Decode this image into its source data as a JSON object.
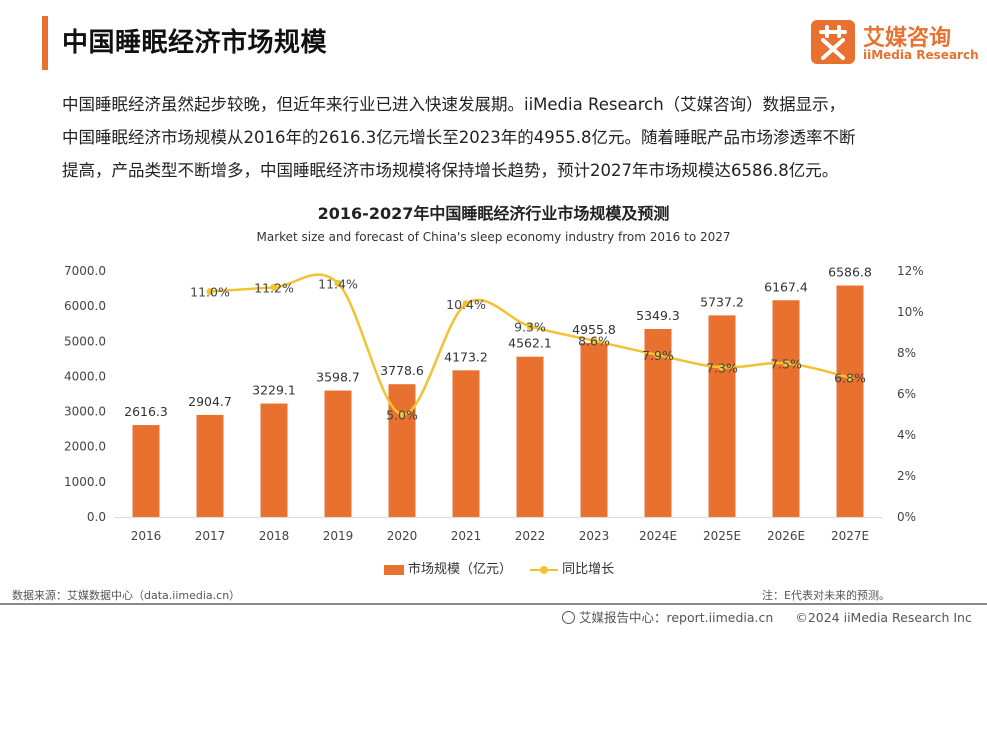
{
  "header": {
    "title": "中国睡眠经济市场规模",
    "logo_cn": "艾媒咨询",
    "logo_en": "iiMedia Research"
  },
  "intro": {
    "lines": [
      "中国睡眠经济虽然起步较晚，但近年来行业已进入快速发展期。iiMedia Research（艾媒咨询）数据显示，",
      "中国睡眠经济市场规模从2016年的2616.3亿元增长至2023年的4955.8亿元。随着睡眠产品市场渗透率不断",
      "提高，产品类型不断增多，中国睡眠经济市场规模将保持增长趋势，预计2027年市场规模达6586.8亿元。"
    ]
  },
  "chart_data": {
    "type": "bar",
    "title": "2016-2027年中国睡眠经济行业市场规模及预测",
    "subtitle": "Market size and forecast of China's sleep economy industry from 2016 to 2027",
    "categories": [
      "2016",
      "2017",
      "2018",
      "2019",
      "2020",
      "2021",
      "2022",
      "2023",
      "2024E",
      "2025E",
      "2026E",
      "2027E"
    ],
    "series": [
      {
        "name": "市场规模（亿元）",
        "type": "bar",
        "axis": "left",
        "values": [
          2616.3,
          2904.7,
          3229.1,
          3598.7,
          3778.6,
          4173.2,
          4562.1,
          4955.8,
          5349.3,
          5737.2,
          6167.4,
          6586.8
        ],
        "labels": [
          "2616.3",
          "2904.7",
          "3229.1",
          "3598.7",
          "3778.6",
          "4173.2",
          "4562.1",
          "4955.8",
          "5349.3",
          "5737.2",
          "6167.4",
          "6586.8"
        ]
      },
      {
        "name": "同比增长",
        "type": "line",
        "axis": "right",
        "values": [
          null,
          11.0,
          11.2,
          11.4,
          5.0,
          10.4,
          9.3,
          8.6,
          7.9,
          7.3,
          7.5,
          6.8
        ],
        "labels": [
          "",
          "11.0%",
          "11.2%",
          "11.4%",
          "5.0%",
          "10.4%",
          "9.3%",
          "8.6%",
          "7.9%",
          "7.3%",
          "7.5%",
          "6.8%"
        ]
      }
    ],
    "y_left": {
      "range": [
        0,
        7000
      ],
      "ticks": [
        "0.0",
        "1000.0",
        "2000.0",
        "3000.0",
        "4000.0",
        "5000.0",
        "6000.0",
        "7000.0"
      ]
    },
    "y_right": {
      "range": [
        0,
        12
      ],
      "ticks": [
        "0%",
        "2%",
        "4%",
        "6%",
        "8%",
        "10%",
        "12%"
      ]
    },
    "grid": false,
    "legend_position": "bottom-center",
    "colors": {
      "bar": "#e8712f",
      "line": "#f1c232"
    }
  },
  "footer": {
    "source": "数据来源：艾媒数据中心（data.iimedia.cn）",
    "note": "注：E代表对未来的预测。",
    "report": "艾媒报告中心：report.iimedia.cn",
    "copyright": "©2024  iiMedia Research Inc"
  }
}
